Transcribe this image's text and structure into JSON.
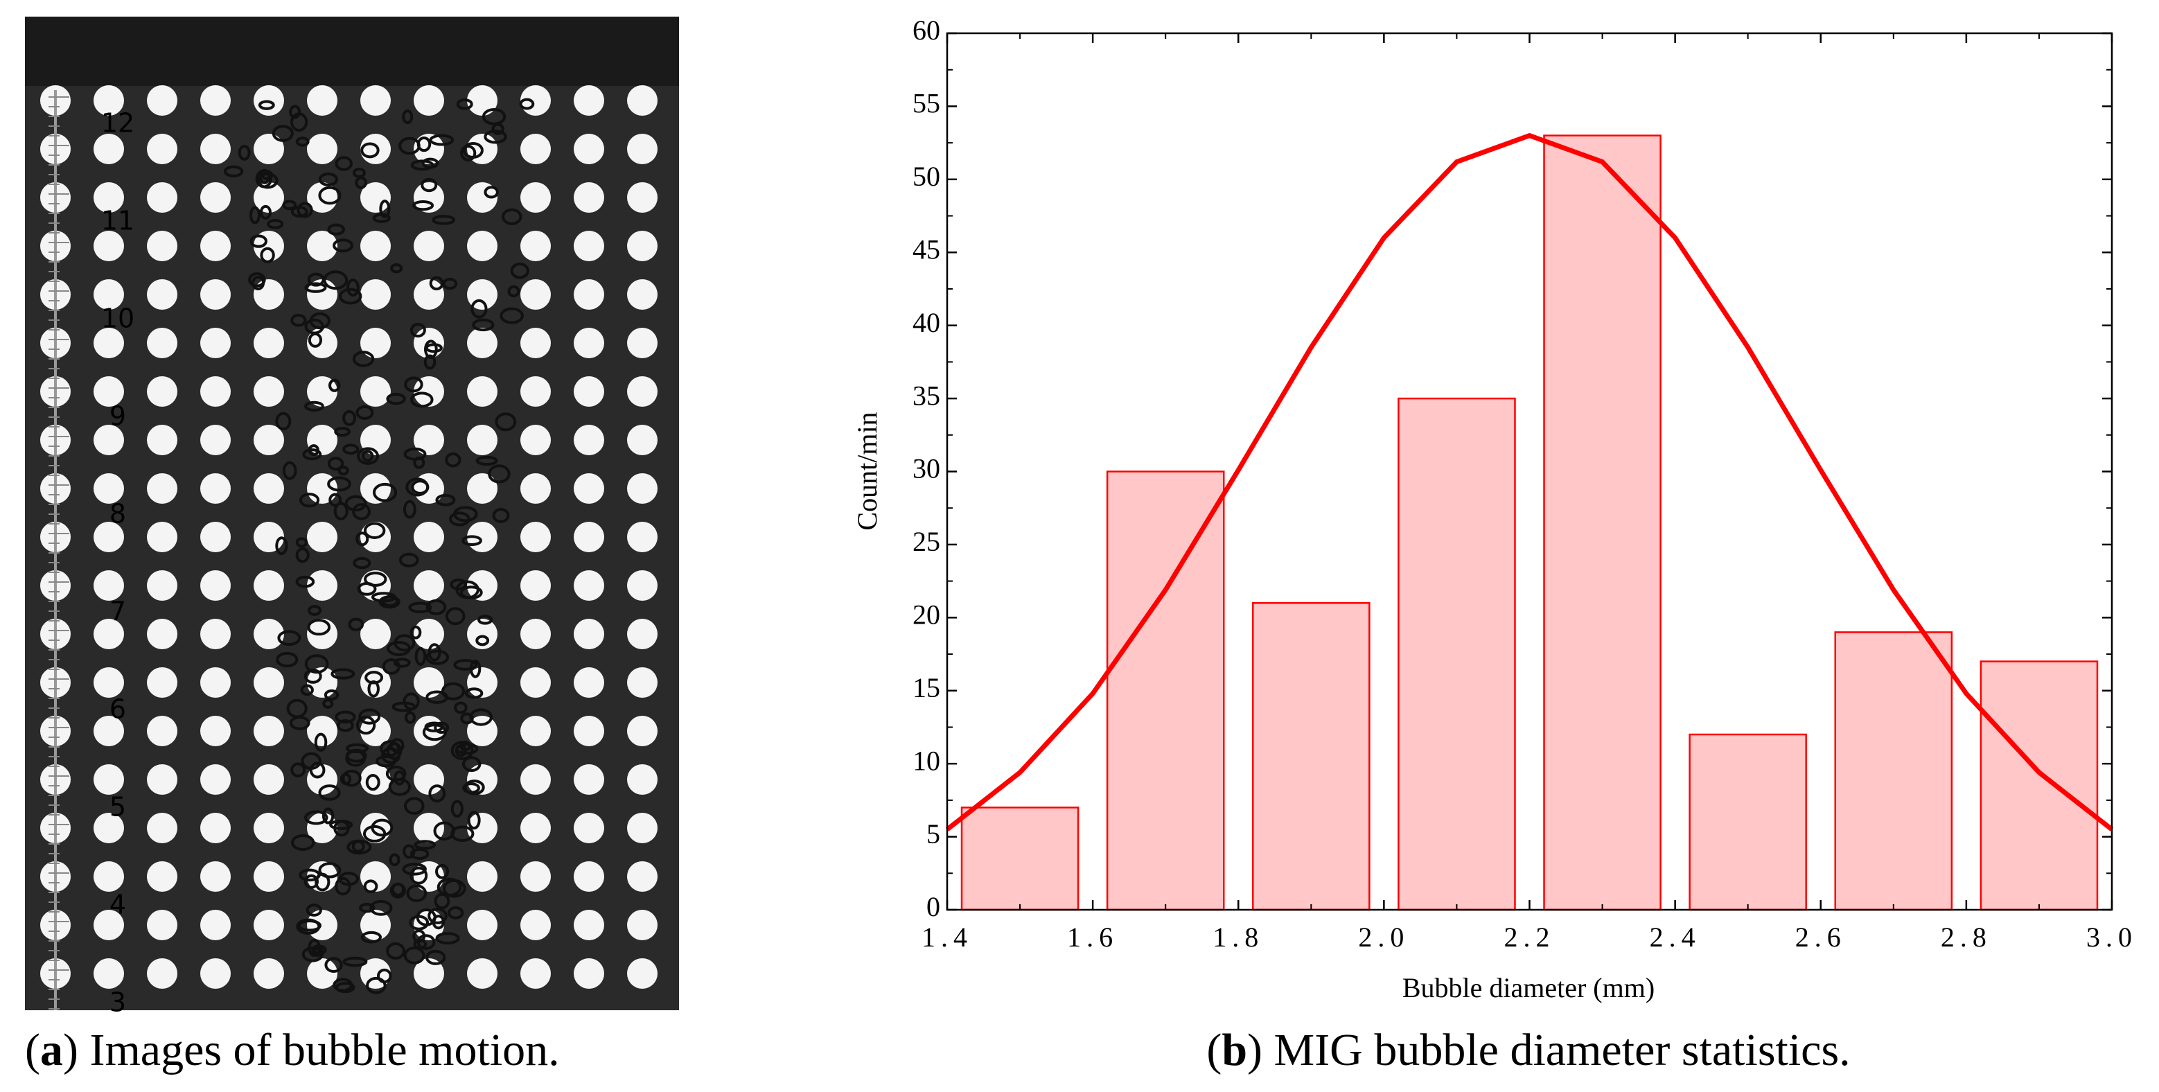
{
  "panel_a": {
    "caption_open": "(",
    "caption_letter": "a",
    "caption_text": ") Images of bubble motion.",
    "ruler_labels": [
      "12",
      "11",
      "10",
      "9",
      "8",
      "7",
      "6",
      "5",
      "4",
      "3"
    ]
  },
  "panel_b": {
    "caption_open": "(",
    "caption_letter": "b",
    "caption_text": ") MIG bubble diameter statistics."
  },
  "chart_data": {
    "type": "bar",
    "x": [
      1.5,
      1.7,
      1.9,
      2.1,
      2.3,
      2.5,
      2.7,
      2.9
    ],
    "values": [
      7,
      30,
      21,
      35,
      53,
      12,
      19,
      17
    ],
    "color": "#ffc7c7",
    "edge_color": "#ff0000",
    "fit": {
      "type": "line",
      "color": "#ff0000",
      "x": [
        1.4,
        1.5,
        1.6,
        1.7,
        1.8,
        1.9,
        2.0,
        2.1,
        2.2,
        2.3,
        2.4,
        2.5,
        2.6,
        2.7,
        2.8,
        2.9,
        3.0
      ],
      "values": [
        5.5,
        9.4,
        14.8,
        21.9,
        30.1,
        38.5,
        46.0,
        51.2,
        53,
        51.2,
        46.0,
        38.5,
        30.1,
        21.9,
        14.8,
        9.4,
        5.5
      ]
    },
    "xlabel": "Bubble diameter (mm)",
    "ylabel": "Count/min",
    "xlim": [
      1.4,
      3.0
    ],
    "xticks": [
      1.4,
      1.6,
      1.8,
      {
        "value": 2,
        "label": "2.0"
      },
      2.2,
      2.4,
      2.6,
      2.8,
      {
        "value": 3,
        "label": "3.0"
      }
    ],
    "ylim": [
      0,
      60
    ],
    "yticks": [
      0,
      5,
      10,
      15,
      20,
      25,
      30,
      35,
      40,
      45,
      50,
      55,
      60
    ]
  }
}
